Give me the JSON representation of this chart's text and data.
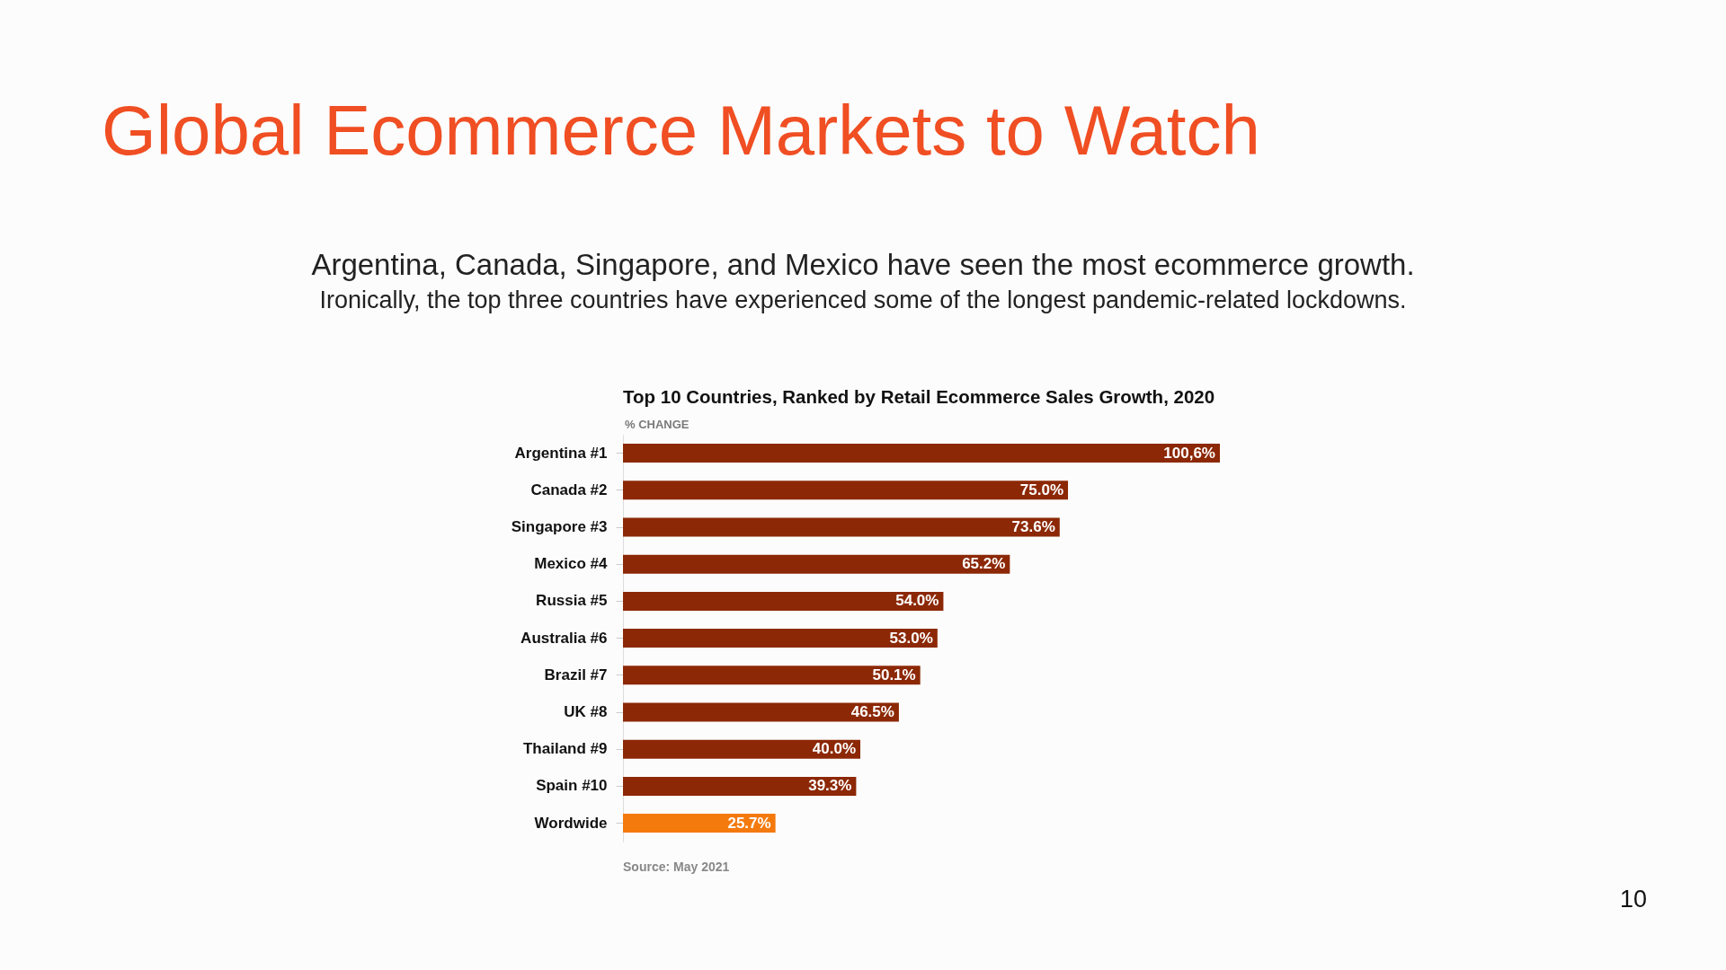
{
  "chart_data": {
    "type": "bar",
    "orientation": "horizontal",
    "title": "Global Ecommerce Markets to Watch",
    "subtitle": "Argentina, Canada, Singapore, and Mexico have seen the most ecommerce growth.",
    "xlabel": "% CHANGE",
    "categories": [
      "Argentina #1",
      "Canada #2",
      "Singapore #3",
      "Mexico #4",
      "Russia #5",
      "Australia #6",
      "Brazil #7",
      "UK #8",
      "Thailand #9",
      "Spain #10",
      "Wordwide"
    ],
    "values": [
      100.6,
      75.0,
      73.6,
      65.2,
      54.0,
      53.0,
      50.1,
      46.5,
      40.0,
      39.3,
      25.7
    ],
    "colors": [
      "#8c2806",
      "#8c2806",
      "#8c2806",
      "#8c2806",
      "#8c2806",
      "#8c2806",
      "#8c2806",
      "#8c2806",
      "#8c2806",
      "#8c2806",
      "#f47a0e"
    ],
    "value_labels": [
      "100,6%",
      "75.0%",
      "73.6%",
      "65.2%",
      "54.0%",
      "53.0%",
      "50.1%",
      "46.5%",
      "40.0%",
      "39.3%",
      "25.7%"
    ],
    "annotations": [
      "Ironically, the top three countries have experienced some of the longest pandemic-related lockdowns.",
      "Top 10 Countries, Ranked by Retail Ecommerce Sales Growth, 2020",
      "Source: May 2021",
      "10"
    ]
  }
}
